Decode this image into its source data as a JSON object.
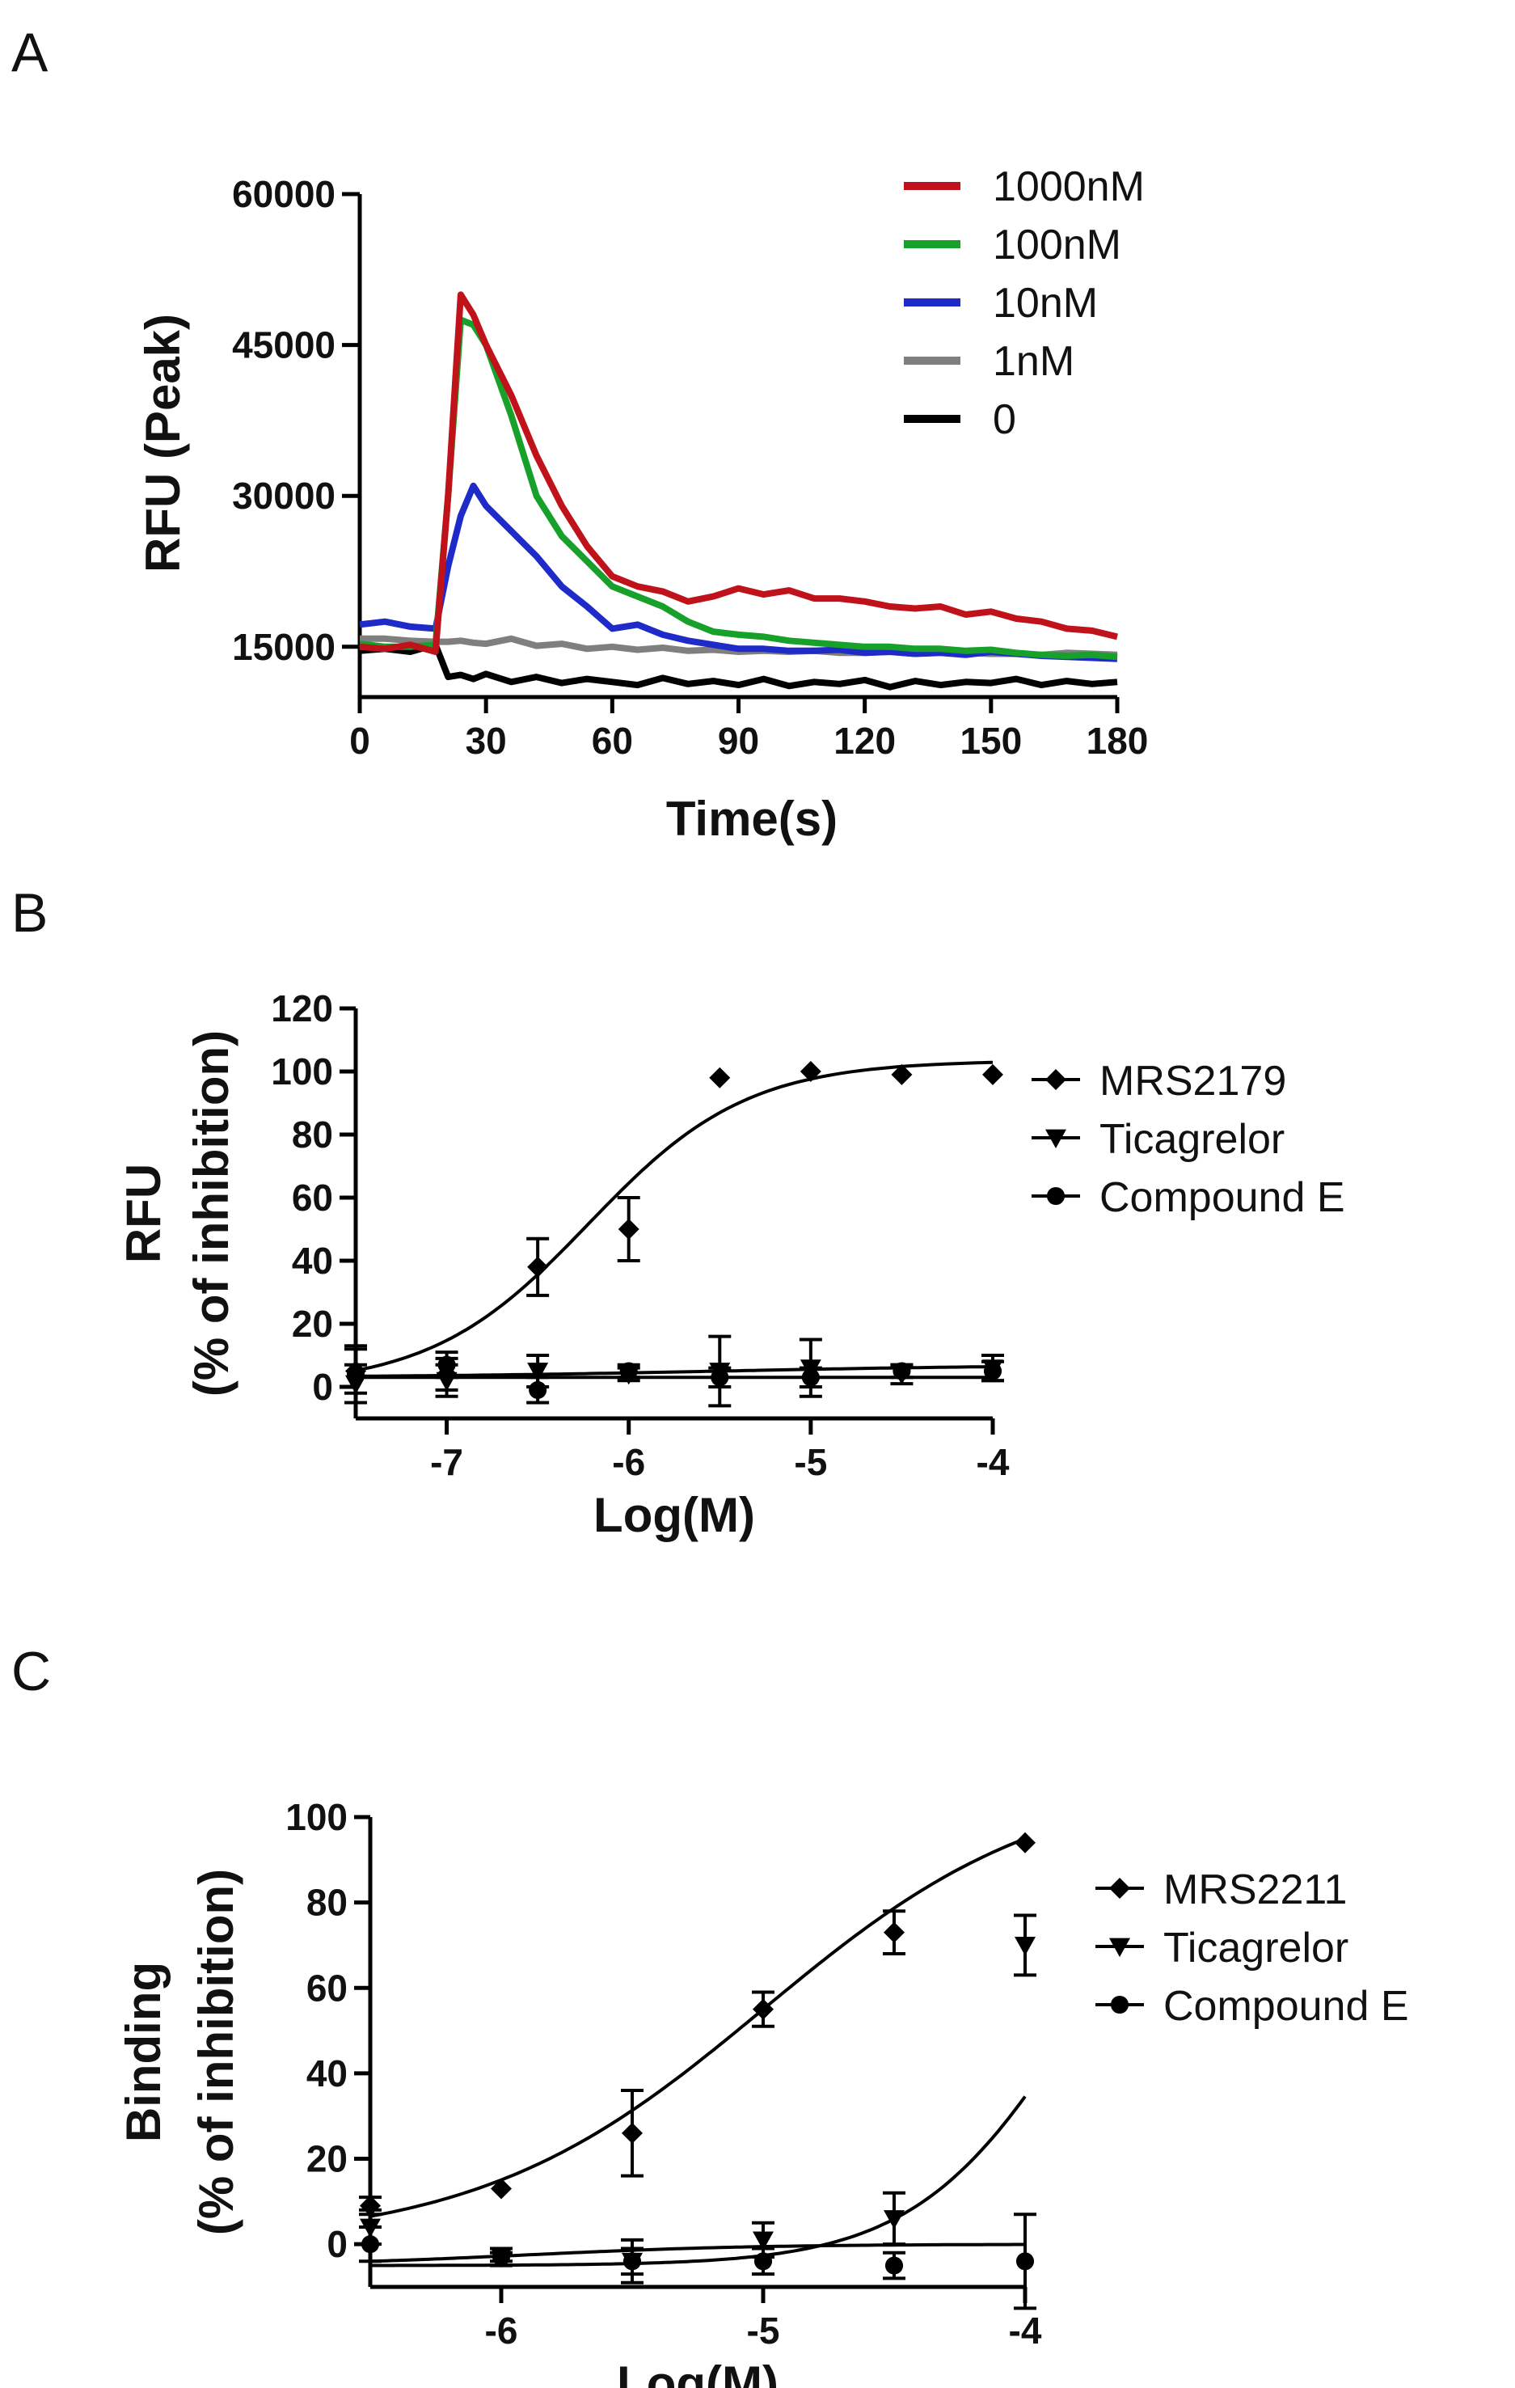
{
  "panels": {
    "a": {
      "letter": "A"
    },
    "b": {
      "letter": "B"
    },
    "c": {
      "letter": "C"
    }
  },
  "chart_data": [
    {
      "type": "line",
      "panel": "A",
      "title": "",
      "xlabel": "Time(s)",
      "ylabel": "RFU (Peak)",
      "xlim": [
        0,
        180
      ],
      "ylim": [
        10000,
        60000
      ],
      "xticks": [
        0,
        30,
        60,
        90,
        120,
        150,
        180
      ],
      "yticks": [
        15000,
        30000,
        45000,
        60000
      ],
      "x": [
        0,
        6,
        12,
        18,
        21,
        24,
        27,
        30,
        36,
        42,
        48,
        54,
        60,
        66,
        72,
        78,
        84,
        90,
        96,
        102,
        108,
        114,
        120,
        126,
        132,
        138,
        144,
        150,
        156,
        162,
        168,
        174,
        180
      ],
      "series": [
        {
          "name": "1000nM",
          "color": "#c0121a",
          "values": [
            15000,
            14800,
            15200,
            14500,
            30000,
            50000,
            48000,
            45000,
            40000,
            34000,
            29000,
            25000,
            22000,
            21000,
            20500,
            19500,
            20000,
            20800,
            20200,
            20600,
            19800,
            19800,
            19500,
            19000,
            18800,
            19000,
            18200,
            18500,
            17800,
            17500,
            16800,
            16600,
            16000
          ]
        },
        {
          "name": "100nM",
          "color": "#17a12b",
          "values": [
            15300,
            15000,
            15000,
            15200,
            30000,
            47500,
            47000,
            45000,
            38000,
            30000,
            26000,
            23500,
            21000,
            20000,
            19000,
            17500,
            16500,
            16200,
            16000,
            15600,
            15400,
            15200,
            15000,
            15000,
            14800,
            14800,
            14600,
            14700,
            14400,
            14200,
            14100,
            14200,
            14000
          ]
        },
        {
          "name": "10nM",
          "color": "#1f2bc8",
          "values": [
            17200,
            17500,
            17000,
            16800,
            23000,
            28000,
            31000,
            29000,
            26500,
            24000,
            21000,
            19000,
            16800,
            17200,
            16200,
            15600,
            15200,
            14800,
            14800,
            14600,
            14600,
            14700,
            14400,
            14500,
            14300,
            14400,
            14200,
            14500,
            14300,
            14100,
            14000,
            13900,
            13800
          ]
        },
        {
          "name": "1nM",
          "color": "#7f7f7f",
          "values": [
            15800,
            15800,
            15600,
            15500,
            15500,
            15600,
            15400,
            15300,
            15800,
            15100,
            15300,
            14800,
            15000,
            14700,
            14900,
            14600,
            14700,
            14500,
            14600,
            14500,
            14600,
            14400,
            14400,
            14500,
            14300,
            14600,
            14400,
            14300,
            14300,
            14200,
            14400,
            14300,
            14200
          ]
        },
        {
          "name": "0",
          "color": "#000000",
          "values": [
            14600,
            14800,
            14500,
            15200,
            12000,
            12200,
            11800,
            12300,
            11500,
            12000,
            11400,
            11800,
            11500,
            11200,
            11900,
            11300,
            11600,
            11200,
            11800,
            11100,
            11500,
            11300,
            11700,
            11000,
            11600,
            11200,
            11500,
            11400,
            11800,
            11200,
            11600,
            11300,
            11500
          ]
        }
      ]
    },
    {
      "type": "scatter",
      "panel": "B",
      "title": "",
      "xlabel": "Log(M)",
      "ylabel": "RFU",
      "ylabel2": "(% of inhibition)",
      "xlim": [
        -7.5,
        -4
      ],
      "ylim": [
        -10,
        120
      ],
      "xticks": [
        -7,
        -6,
        -5,
        -4
      ],
      "yticks": [
        0,
        20,
        40,
        60,
        80,
        100,
        120
      ],
      "series": [
        {
          "name": "MRS2179",
          "marker": "diamond",
          "x": [
            -7.5,
            -7,
            -6.5,
            -6,
            -5.5,
            -5,
            -4.5,
            -4
          ],
          "values": [
            5,
            4,
            38,
            50,
            98,
            100,
            99,
            99
          ],
          "error": [
            7,
            5,
            9,
            10,
            0,
            0,
            0,
            0
          ],
          "fit": {
            "bottom": 0,
            "top": 103.5,
            "logEC50": -6.22,
            "hill": 1.0
          }
        },
        {
          "name": "Ticagrelor",
          "marker": "triangle-down",
          "x": [
            -7.5,
            -7,
            -6.5,
            -6,
            -5.5,
            -5,
            -4.5,
            -4
          ],
          "values": [
            1,
            2,
            5,
            4,
            5,
            6,
            4,
            6
          ],
          "error": [
            6,
            5,
            5,
            2,
            11,
            9,
            3,
            4
          ],
          "fit": {
            "bottom": 3,
            "top": 3,
            "logEC50": -6,
            "hill": 1.0
          }
        },
        {
          "name": "Compound E",
          "marker": "circle",
          "x": [
            -7.5,
            -7,
            -6.5,
            -6,
            -5.5,
            -5,
            -4.5,
            -4
          ],
          "values": [
            4,
            7,
            -1,
            5,
            3,
            3,
            5,
            5
          ],
          "error": [
            9,
            4,
            4,
            2,
            3,
            3,
            2,
            3
          ],
          "fit": {
            "bottom": 3,
            "top": 7,
            "logEC50": -5.5,
            "hill": 0.5
          }
        }
      ]
    },
    {
      "type": "scatter",
      "panel": "C",
      "title": "",
      "xlabel": "Log(M)",
      "ylabel": "Binding",
      "ylabel2": "(% of inhibition)",
      "xlim": [
        -6.5,
        -4
      ],
      "ylim": [
        -10,
        100
      ],
      "xticks": [
        -6,
        -5,
        -4
      ],
      "yticks": [
        0,
        20,
        40,
        60,
        80,
        100
      ],
      "series": [
        {
          "name": "MRS2211",
          "marker": "diamond",
          "x": [
            -6.5,
            -6,
            -5.5,
            -5,
            -4.5,
            -4
          ],
          "values": [
            9,
            13,
            26,
            55,
            73,
            94
          ],
          "error": [
            2,
            0,
            10,
            4,
            5,
            0
          ],
          "fit": {
            "bottom": 0,
            "top": 110,
            "logEC50": -5.0,
            "hill": 0.8
          }
        },
        {
          "name": "Ticagrelor",
          "marker": "triangle-down",
          "x": [
            -6.5,
            -6,
            -5.5,
            -5,
            -4.5,
            -4
          ],
          "values": [
            4,
            -3,
            -4,
            1,
            6,
            70
          ],
          "error": [
            4,
            1,
            5,
            4,
            6,
            7
          ],
          "fit": {
            "bottom": -5,
            "top": 110,
            "logEC50": -3.8,
            "hill": 1.4
          }
        },
        {
          "name": "Compound E",
          "marker": "circle",
          "x": [
            -6.5,
            -6,
            -5.5,
            -5,
            -4.5,
            -4
          ],
          "values": [
            0,
            -3,
            -4,
            -4,
            -5,
            -4
          ],
          "error": [
            4,
            2,
            3,
            3,
            3,
            11
          ],
          "fit": {
            "bottom": -5,
            "top": 0,
            "logEC50": -5.9,
            "hill": 1.0
          }
        }
      ]
    }
  ]
}
